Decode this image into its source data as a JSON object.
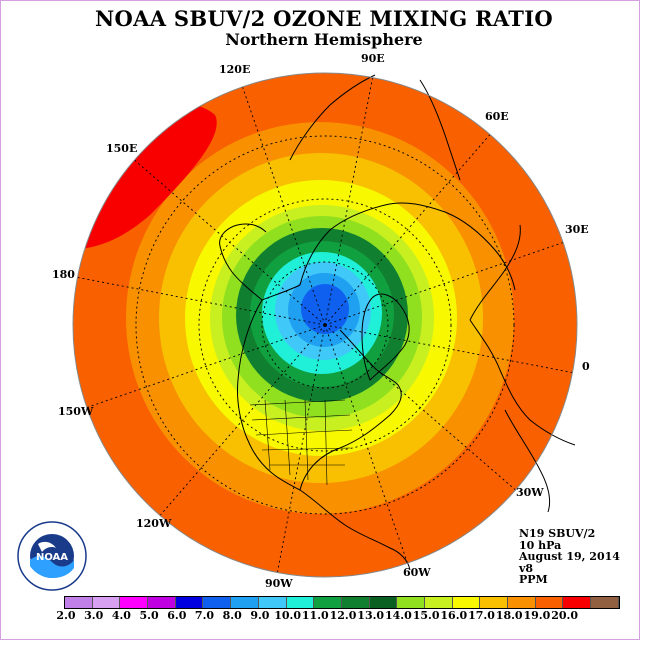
{
  "title": "NOAA SBUV/2 OZONE MIXING RATIO",
  "subtitle": "Northern Hemisphere",
  "longitude_labels": [
    "90E",
    "60E",
    "30E",
    "0",
    "30W",
    "60W",
    "90W",
    "120W",
    "150W",
    "180",
    "150E",
    "120E"
  ],
  "info": {
    "satellite": "N19 SBUV/2",
    "level": "10 hPa",
    "date": "August 19, 2014",
    "version": "v8",
    "units": "PPM"
  },
  "colorbar": {
    "ticks": [
      "2.0",
      "3.0",
      "4.0",
      "5.0",
      "6.0",
      "7.0",
      "8.0",
      "9.0",
      "10.0",
      "11.0",
      "12.0",
      "13.0",
      "14.0",
      "15.0",
      "16.0",
      "17.0",
      "18.0",
      "19.0",
      "20.0"
    ],
    "colors": [
      "#c080e8",
      "#d8a0f0",
      "#ff00ff",
      "#c000e0",
      "#0000e0",
      "#1060f0",
      "#20a0f0",
      "#40c8f8",
      "#20f0d8",
      "#10a040",
      "#108030",
      "#0a6020",
      "#90e020",
      "#c8f020",
      "#f8f800",
      "#f8c000",
      "#f89000",
      "#f86000",
      "#f80000",
      "#906040"
    ]
  },
  "map_layers": [
    {
      "level": "18.0",
      "color": "#f86000"
    },
    {
      "level": "17.0",
      "color": "#f89000"
    },
    {
      "level": "16.0",
      "color": "#f8c000"
    },
    {
      "level": "15.0",
      "color": "#f8f800"
    },
    {
      "level": "14.0",
      "color": "#c8f020"
    },
    {
      "level": "13.0",
      "color": "#90e020"
    },
    {
      "level": "12.0",
      "color": "#108030"
    },
    {
      "level": "11.0",
      "color": "#10a040"
    },
    {
      "level": "10.0",
      "color": "#20f0d8"
    },
    {
      "level": "9.0",
      "color": "#40c8f8"
    },
    {
      "level": "8.0",
      "color": "#20a0f0"
    },
    {
      "level": "7.0",
      "color": "#1060f0"
    }
  ],
  "max_patch": {
    "level": "19.0",
    "color": "#f80000"
  },
  "logo_text": "NOAA"
}
